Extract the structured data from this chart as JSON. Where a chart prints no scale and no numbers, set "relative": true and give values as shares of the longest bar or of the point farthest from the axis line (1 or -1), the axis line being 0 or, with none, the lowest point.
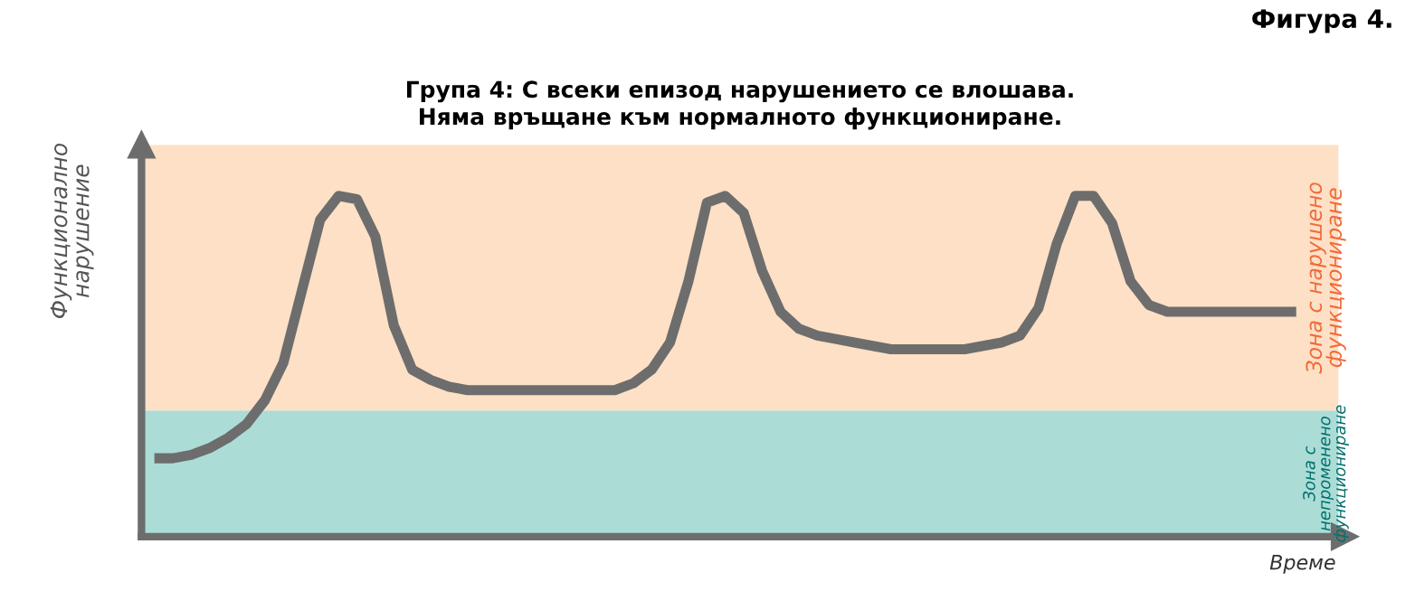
{
  "chart_data": {
    "type": "line",
    "relative": true,
    "title": "Група 4: С всеки епизод нарушението се влошава.\nНяма връщане към нормалното функциониране.",
    "xlabel": "Време",
    "ylabel": "Функционално\nнарушение",
    "annotations": [
      "Фигура 4."
    ],
    "categories": [
      null,
      null,
      null,
      null,
      null,
      null,
      null,
      null,
      null,
      null,
      null,
      null,
      null,
      null,
      null,
      null,
      null,
      null,
      null,
      null,
      null,
      null,
      null,
      null,
      null,
      null,
      null,
      null,
      null,
      null,
      null,
      null,
      null,
      null,
      null,
      null,
      null,
      null,
      null,
      null,
      null,
      null,
      null,
      null,
      null,
      null,
      null,
      null,
      null,
      null,
      null,
      null,
      null,
      null,
      null,
      null,
      null,
      null,
      null,
      null,
      null,
      null,
      null
    ],
    "series": [
      {
        "color": "#6d6d6d",
        "values": [
          0.23,
          0.23,
          0.24,
          0.26,
          0.29,
          0.33,
          0.4,
          0.51,
          0.72,
          0.93,
          1.0,
          0.99,
          0.88,
          0.62,
          0.49,
          0.46,
          0.44,
          0.43,
          0.43,
          0.43,
          0.43,
          0.43,
          0.43,
          0.43,
          0.43,
          0.43,
          0.45,
          0.49,
          0.57,
          0.75,
          0.98,
          1.0,
          0.95,
          0.78,
          0.66,
          0.61,
          0.59,
          0.58,
          0.57,
          0.56,
          0.55,
          0.55,
          0.55,
          0.55,
          0.55,
          0.56,
          0.57,
          0.59,
          0.67,
          0.86,
          1.0,
          1.0,
          0.92,
          0.75,
          0.68,
          0.66,
          0.66,
          0.66,
          0.66,
          0.66,
          0.66,
          0.66,
          0.66
        ]
      }
    ],
    "bands": [
      {
        "axis": "y",
        "from": 0,
        "to": 0.37,
        "label": "Зона с\nнепроменено\nфункциониране",
        "color": "#acdcd6"
      },
      {
        "axis": "y",
        "from": 0.37,
        "to": 1.15,
        "label": "Зона с нарушено\nфункциониране",
        "color": "#fde0c5"
      }
    ],
    "grid": false,
    "legend": false,
    "marker": "none",
    "line_style": "solid"
  }
}
